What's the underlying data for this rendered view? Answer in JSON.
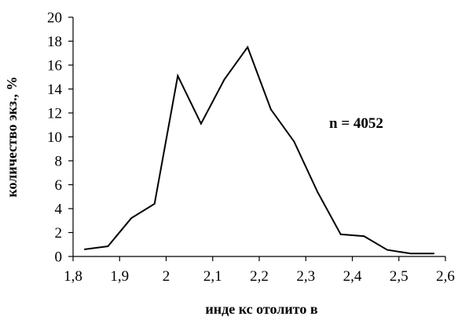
{
  "chart_data": {
    "type": "line",
    "x": [
      1.825,
      1.875,
      1.925,
      1.975,
      2.025,
      2.075,
      2.125,
      2.175,
      2.225,
      2.275,
      2.325,
      2.375,
      2.425,
      2.475,
      2.525,
      2.575
    ],
    "series": [
      {
        "values": [
          0.6,
          0.85,
          3.2,
          4.4,
          15.1,
          11.1,
          14.8,
          17.5,
          12.3,
          9.6,
          5.4,
          1.85,
          1.7,
          0.55,
          0.25,
          0.25
        ]
      }
    ],
    "xlabel": "инде кс отолито в",
    "ylabel": "количество экз., %",
    "annotation": "n = 4052",
    "xlim": [
      1.8,
      2.6
    ],
    "ylim": [
      0,
      20
    ],
    "xticks": [
      "1,8",
      "1,9",
      "2",
      "2,1",
      "2,2",
      "2,3",
      "2,4",
      "2,5",
      "2,6"
    ],
    "yticks": [
      "0",
      "2",
      "4",
      "6",
      "8",
      "10",
      "12",
      "14",
      "16",
      "18",
      "20"
    ],
    "grid": false,
    "line_color": "#000000"
  }
}
